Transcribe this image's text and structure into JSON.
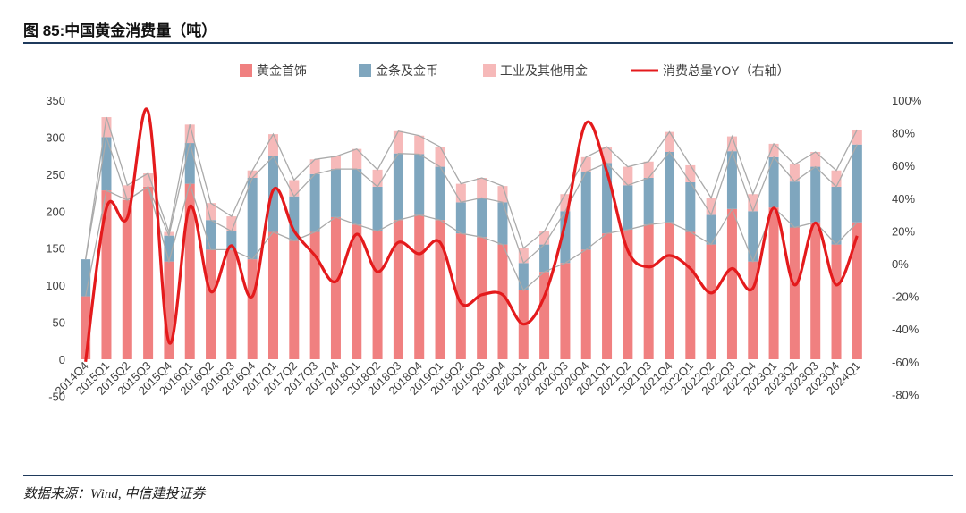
{
  "figure": {
    "title": "图 85:中国黄金消费量（吨）",
    "source": "数据来源：Wind,  中信建投证券"
  },
  "colors": {
    "jewelry": "#f08080",
    "bars_coins": "#7fa6be",
    "industrial": "#f6b9b9",
    "yoy_line": "#e41a1c",
    "total_outline": "#aaaaaa",
    "rule": "#1f3a5c"
  },
  "chart_data": {
    "type": "bar",
    "stacked": true,
    "categories": [
      "2014Q4",
      "2015Q1",
      "2015Q2",
      "2015Q3",
      "2015Q4",
      "2016Q1",
      "2016Q2",
      "2016Q3",
      "2016Q4",
      "2017Q1",
      "2017Q2",
      "2017Q3",
      "2017Q4",
      "2018Q1",
      "2018Q2",
      "2018Q3",
      "2018Q4",
      "2019Q1",
      "2019Q2",
      "2019Q3",
      "2019Q4",
      "2020Q1",
      "2020Q2",
      "2020Q3",
      "2020Q4",
      "2021Q1",
      "2021Q2",
      "2021Q3",
      "2021Q4",
      "2022Q1",
      "2022Q2",
      "2022Q3",
      "2022Q4",
      "2023Q1",
      "2023Q2",
      "2023Q3",
      "2023Q4",
      "2024Q1"
    ],
    "series": [
      {
        "name": "黄金首饰",
        "axis": "left",
        "values": [
          85,
          228,
          215,
          233,
          132,
          237,
          148,
          148,
          135,
          172,
          160,
          172,
          192,
          182,
          173,
          188,
          195,
          188,
          170,
          165,
          155,
          93,
          118,
          130,
          148,
          170,
          175,
          182,
          185,
          172,
          155,
          203,
          132,
          205,
          178,
          185,
          155,
          185
        ]
      },
      {
        "name": "金条及金币",
        "axis": "left",
        "values": [
          50,
          72,
          0,
          0,
          35,
          55,
          40,
          25,
          110,
          102,
          60,
          78,
          65,
          75,
          60,
          90,
          82,
          72,
          42,
          53,
          57,
          37,
          37,
          70,
          105,
          95,
          60,
          63,
          95,
          67,
          40,
          78,
          68,
          68,
          62,
          75,
          78,
          105
        ]
      },
      {
        "name": "工业及其他用金",
        "axis": "left",
        "values": [
          0,
          27,
          20,
          18,
          5,
          25,
          23,
          20,
          10,
          30,
          22,
          20,
          17,
          27,
          23,
          30,
          25,
          27,
          25,
          27,
          22,
          20,
          18,
          23,
          20,
          22,
          25,
          22,
          27,
          23,
          23,
          20,
          23,
          18,
          23,
          20,
          22,
          20
        ]
      },
      {
        "name": "消费总量YOY（右轴）",
        "axis": "right",
        "type": "line",
        "values": [
          -60,
          34,
          28,
          93,
          -48,
          35,
          -17,
          11,
          -20,
          45,
          20,
          5,
          -11,
          18,
          -5,
          13,
          6,
          13,
          -24,
          -19,
          -19,
          -37,
          -20,
          25,
          86,
          56,
          8,
          -2,
          5,
          -3,
          -18,
          -3,
          -15,
          34,
          -13,
          25,
          -13,
          17
        ]
      }
    ],
    "yaxis_left": {
      "ylim": [
        -50,
        350
      ],
      "ticks": [
        -50,
        0,
        50,
        100,
        150,
        200,
        250,
        300,
        350
      ]
    },
    "yaxis_right": {
      "ylim": [
        -80,
        100
      ],
      "ticks": [
        "-80%",
        "-60%",
        "-40%",
        "-20%",
        "0%",
        "20%",
        "40%",
        "60%",
        "80%",
        "100%"
      ]
    },
    "legend": {
      "position": "top",
      "items": [
        "黄金首饰",
        "金条及金币",
        "工业及其他用金",
        "消费总量YOY（右轴）"
      ]
    },
    "grid": false
  }
}
